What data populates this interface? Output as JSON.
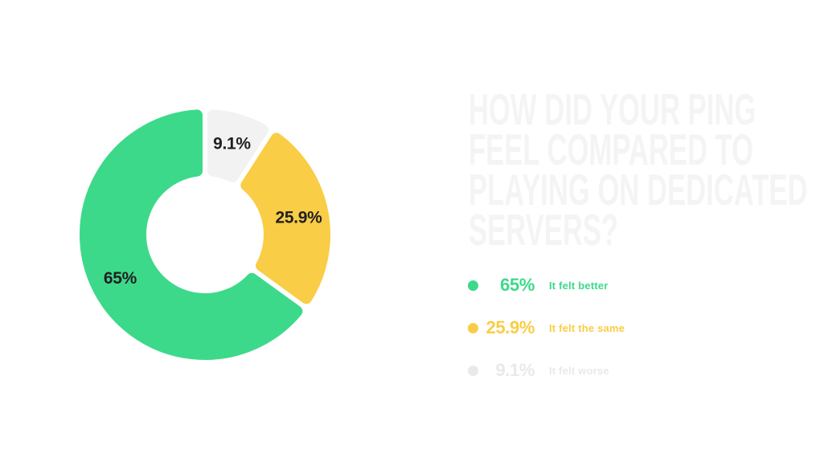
{
  "title": {
    "full_text": "HOW DID YOUR PING FEEL COMPARED TO PLAYING ON DEDICATED SERVERS?",
    "lines": [
      "HOW DID YOUR PING",
      "FEEL COMPARED TO",
      "PLAYING ON DEDICATED",
      "SERVERS?"
    ],
    "color": "#f4f4f4"
  },
  "chart_data": {
    "type": "pie",
    "variant": "donut",
    "title": "How did your ping feel compared to playing on dedicated servers?",
    "start_angle_deg": 0,
    "direction": "clockwise",
    "inner_radius_ratio": 0.47,
    "categories": [
      "It felt worse",
      "It felt the same",
      "It felt better"
    ],
    "values": [
      9.1,
      25.9,
      65
    ],
    "slices": [
      {
        "name": "It felt worse",
        "value": 9.1,
        "label": "9.1%",
        "color": "#f2f2f2"
      },
      {
        "name": "It felt the same",
        "value": 25.9,
        "label": "25.9%",
        "color": "#f9cd45"
      },
      {
        "name": "It felt better",
        "value": 65,
        "label": "65%",
        "color": "#3dd98a"
      }
    ],
    "slice_label_color": "#212121",
    "legend_position": "right",
    "grid": false
  },
  "legend": {
    "items": [
      {
        "percent": "65%",
        "label": "It felt better",
        "color": "#3dd98a"
      },
      {
        "percent": "25.9%",
        "label": "It felt the same",
        "color": "#f9cd45"
      },
      {
        "percent": "9.1%",
        "label": "It felt worse",
        "color": "#e9e9e9"
      }
    ]
  }
}
